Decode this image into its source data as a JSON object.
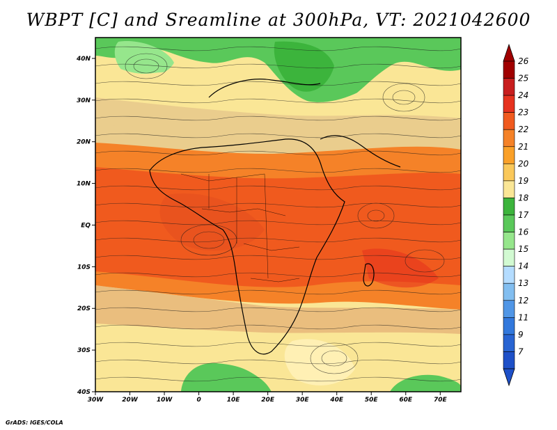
{
  "title": "WBPT [C] and Sreamline at 300hPa, VT: 2021042600",
  "credit": "GrADS: IGES/COLA",
  "map": {
    "lat_labels": [
      "40N",
      "30N",
      "20N",
      "10N",
      "EQ",
      "10S",
      "20S",
      "30S",
      "40S"
    ],
    "lat_values": [
      40,
      30,
      20,
      10,
      0,
      -10,
      -20,
      -30,
      -40
    ],
    "lon_labels": [
      "30W",
      "20W",
      "10W",
      "0",
      "10E",
      "20E",
      "30E",
      "40E",
      "50E",
      "60E",
      "70E"
    ],
    "lon_values": [
      -30,
      -20,
      -10,
      0,
      10,
      20,
      30,
      40,
      50,
      60,
      70
    ],
    "lat_range": [
      -40,
      45
    ],
    "lon_range": [
      -30,
      76
    ]
  },
  "colorbar": {
    "labels": [
      "26",
      "25",
      "24",
      "23",
      "22",
      "21",
      "20",
      "19",
      "18",
      "17",
      "16",
      "15",
      "14",
      "13",
      "12",
      "11",
      "9",
      "7"
    ],
    "colors": [
      "#a00000",
      "#c81e1e",
      "#e6321e",
      "#f05a1e",
      "#f58228",
      "#faa028",
      "#fac85a",
      "#fae696",
      "#3cb43c",
      "#5ac85a",
      "#96e68c",
      "#d2fad2",
      "#b4dcff",
      "#82bef0",
      "#5096e6",
      "#3278dc",
      "#2864d2",
      "#1e50c8"
    ]
  }
}
